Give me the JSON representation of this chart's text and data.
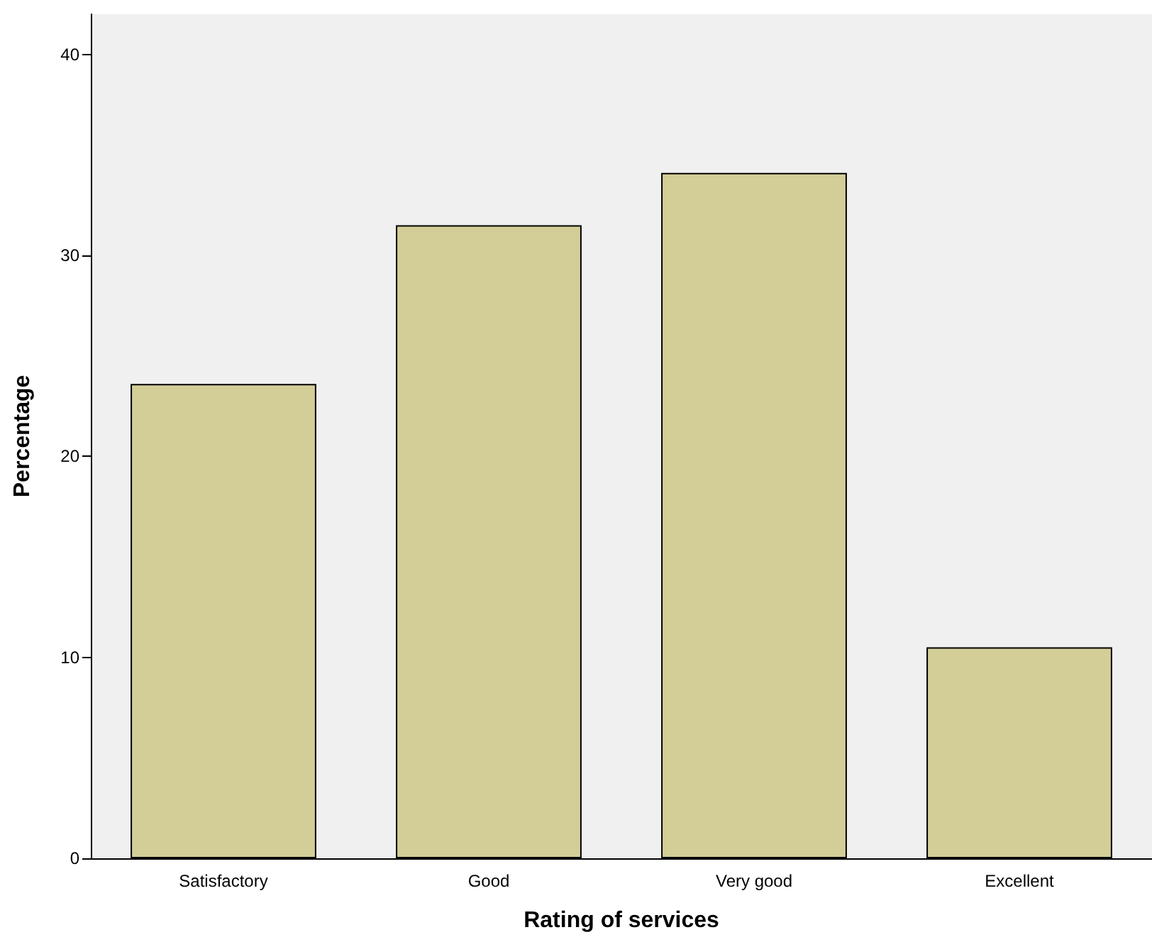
{
  "chart_data": {
    "type": "bar",
    "xlabel": "Rating of services",
    "ylabel": "Percentage",
    "categories": [
      "Satisfactory",
      "Good",
      "Very good",
      "Excellent"
    ],
    "values": [
      23.6,
      31.5,
      34.1,
      10.5
    ],
    "color": "#d3ce97",
    "ylim": [
      0,
      42
    ],
    "yticks": [
      0,
      10,
      20,
      30,
      40
    ],
    "grid": false
  }
}
